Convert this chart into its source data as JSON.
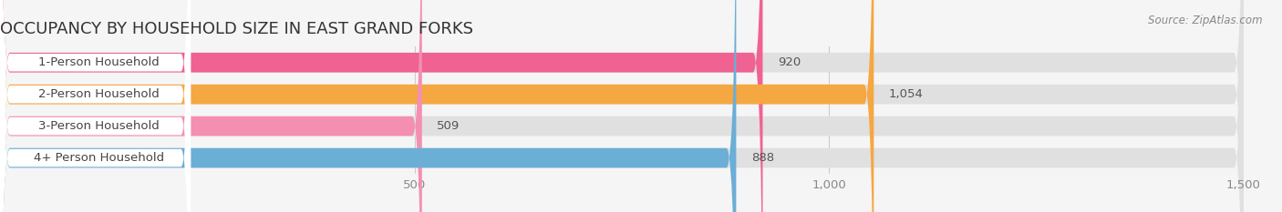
{
  "title": "OCCUPANCY BY HOUSEHOLD SIZE IN EAST GRAND FORKS",
  "source": "Source: ZipAtlas.com",
  "categories": [
    "1-Person Household",
    "2-Person Household",
    "3-Person Household",
    "4+ Person Household"
  ],
  "values": [
    920,
    1054,
    509,
    888
  ],
  "bar_colors": [
    "#f06292",
    "#f5a742",
    "#f48fb1",
    "#6baed6"
  ],
  "bar_labels": [
    "920",
    "1,054",
    "509",
    "888"
  ],
  "xlim": [
    0,
    1500
  ],
  "xticks": [
    500,
    1000,
    1500
  ],
  "xtick_labels": [
    "500",
    "1,000",
    "1,500"
  ],
  "background_color": "#f5f5f5",
  "bar_bg_color": "#e0e0e0",
  "label_box_color": "#ffffff",
  "bar_height": 0.62,
  "title_fontsize": 13,
  "label_fontsize": 9.5,
  "value_fontsize": 9.5,
  "source_fontsize": 8.5
}
